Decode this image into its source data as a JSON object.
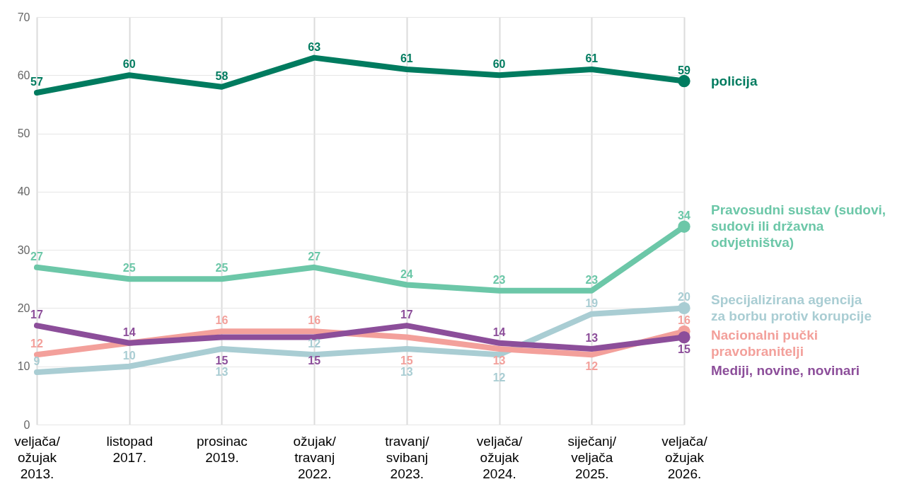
{
  "chart_data": {
    "type": "line",
    "categories": [
      "veljača/ ožujak 2013.",
      "listopad 2017.",
      "prosinac 2019.",
      "ožujak/ travanj 2022.",
      "travanj/ svibanj 2023.",
      "veljača/ ožujak 2024.",
      "siječanj/ veljača 2025.",
      "veljača/ ožujak 2026."
    ],
    "series": [
      {
        "name": "policija",
        "color": "#007b5f",
        "values": [
          57,
          60,
          58,
          63,
          61,
          60,
          61,
          59
        ]
      },
      {
        "name": "Pravosudni sustav (sudovi, sudovi ili državna odvjetništva)",
        "color": "#6cc7a8",
        "values": [
          27,
          25,
          25,
          27,
          24,
          23,
          23,
          34
        ]
      },
      {
        "name": "Specijalizirana agencija za borbu protiv korupcije",
        "color": "#a9cdd3",
        "values": [
          9,
          10,
          13,
          12,
          13,
          12,
          19,
          20
        ]
      },
      {
        "name": "Nacionalni pučki pravobranitelji",
        "color": "#f3a09b",
        "values": [
          12,
          14,
          16,
          16,
          15,
          13,
          12,
          16
        ],
        "value_labels": [
          "12",
          null,
          "16",
          "16",
          "15",
          "13",
          "12",
          "16"
        ]
      },
      {
        "name": "Mediji, novine, novinari",
        "color": "#8c4e9a",
        "values": [
          17,
          14,
          15,
          15,
          17,
          14,
          13,
          15
        ]
      }
    ],
    "ylim": [
      0,
      70
    ],
    "yticks": [
      0,
      10,
      20,
      30,
      40,
      50,
      60,
      70
    ],
    "grid": true,
    "legend": false,
    "data_labels": true
  }
}
